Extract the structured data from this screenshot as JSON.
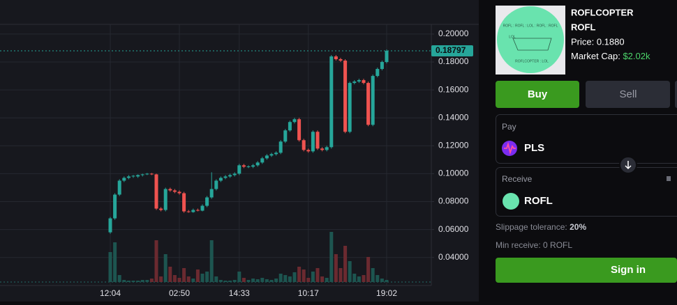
{
  "chart_data": {
    "type": "candlestick",
    "x": [
      "12:04",
      null,
      null,
      null,
      null,
      null,
      null,
      null,
      null,
      null,
      null,
      null,
      null,
      null,
      null,
      "02:50",
      null,
      null,
      null,
      null,
      null,
      null,
      null,
      null,
      null,
      null,
      null,
      null,
      "14:33",
      null,
      null,
      null,
      null,
      null,
      null,
      null,
      null,
      null,
      null,
      null,
      null,
      null,
      null,
      "10:17",
      null,
      null,
      null,
      null,
      null,
      null,
      null,
      null,
      null,
      null,
      null,
      null,
      null,
      null,
      null,
      null,
      "19:02"
    ],
    "open": [
      0.058,
      0.068,
      0.085,
      0.095,
      0.097,
      0.098,
      0.098,
      0.099,
      0.0995,
      0.1,
      0.0995,
      0.075,
      0.074,
      0.089,
      0.088,
      0.087,
      0.086,
      0.073,
      0.0725,
      0.074,
      0.0735,
      0.077,
      0.083,
      0.089,
      0.095,
      0.097,
      0.098,
      0.099,
      0.1,
      0.106,
      0.105,
      0.105,
      0.106,
      0.108,
      0.111,
      0.113,
      0.114,
      0.115,
      0.123,
      0.131,
      0.137,
      0.139,
      0.124,
      0.117,
      0.116,
      0.13,
      0.118,
      0.117,
      0.119,
      0.184,
      0.182,
      0.181,
      0.13,
      0.165,
      0.166,
      0.167,
      0.165,
      0.135,
      0.17,
      0.175,
      0.18
    ],
    "close": [
      0.068,
      0.085,
      0.095,
      0.097,
      0.098,
      0.0985,
      0.099,
      0.0995,
      0.1,
      0.0995,
      0.075,
      0.074,
      0.089,
      0.088,
      0.087,
      0.086,
      0.073,
      0.0725,
      0.074,
      0.0735,
      0.077,
      0.083,
      0.089,
      0.095,
      0.097,
      0.098,
      0.099,
      0.1,
      0.106,
      0.105,
      0.1052,
      0.106,
      0.108,
      0.111,
      0.113,
      0.114,
      0.115,
      0.123,
      0.131,
      0.137,
      0.139,
      0.124,
      0.117,
      0.116,
      0.13,
      0.118,
      0.117,
      0.119,
      0.184,
      0.182,
      0.181,
      0.13,
      0.165,
      0.166,
      0.167,
      0.165,
      0.135,
      0.17,
      0.175,
      0.18,
      0.188
    ],
    "high": [
      0.069,
      0.086,
      0.096,
      0.098,
      0.099,
      0.099,
      0.0995,
      0.1,
      0.1005,
      0.1005,
      0.1,
      0.076,
      0.09,
      0.09,
      0.089,
      0.088,
      0.087,
      0.074,
      0.075,
      0.075,
      0.078,
      0.084,
      0.101,
      0.096,
      0.098,
      0.099,
      0.1,
      0.101,
      0.107,
      0.107,
      0.106,
      0.107,
      0.109,
      0.112,
      0.114,
      0.115,
      0.116,
      0.124,
      0.132,
      0.138,
      0.14,
      0.14,
      0.125,
      0.118,
      0.131,
      0.131,
      0.119,
      0.12,
      0.185,
      0.185,
      0.183,
      0.182,
      0.166,
      0.167,
      0.168,
      0.168,
      0.166,
      0.171,
      0.176,
      0.181,
      0.189
    ],
    "low": [
      0.057,
      0.067,
      0.084,
      0.094,
      0.096,
      0.097,
      0.097,
      0.098,
      0.099,
      0.099,
      0.074,
      0.073,
      0.073,
      0.087,
      0.086,
      0.085,
      0.072,
      0.072,
      0.072,
      0.073,
      0.073,
      0.076,
      0.082,
      0.088,
      0.094,
      0.096,
      0.097,
      0.098,
      0.099,
      0.104,
      0.104,
      0.104,
      0.105,
      0.107,
      0.11,
      0.112,
      0.113,
      0.114,
      0.122,
      0.13,
      0.136,
      0.123,
      0.116,
      0.115,
      0.115,
      0.117,
      0.116,
      0.116,
      0.118,
      0.181,
      0.18,
      0.129,
      0.129,
      0.164,
      0.165,
      0.164,
      0.134,
      0.134,
      0.169,
      0.174,
      0.179
    ],
    "volume": [
      43,
      57,
      10,
      3,
      2,
      2,
      2,
      3,
      3,
      5,
      60,
      8,
      40,
      22,
      10,
      6,
      20,
      8,
      5,
      18,
      12,
      15,
      60,
      8,
      3,
      2,
      2,
      3,
      15,
      6,
      3,
      5,
      4,
      6,
      4,
      3,
      5,
      12,
      10,
      8,
      14,
      22,
      18,
      6,
      15,
      20,
      8,
      6,
      72,
      40,
      20,
      52,
      30,
      12,
      8,
      10,
      36,
      20,
      10,
      5,
      3
    ],
    "volume_lim": [
      0,
      100
    ],
    "ylim": [
      0.0224,
      0.2244
    ],
    "yticks": [
      {
        "value": 0.2,
        "label": "0.20000"
      },
      {
        "value": 0.18,
        "label": "0.18000"
      },
      {
        "value": 0.16,
        "label": "0.16000"
      },
      {
        "value": 0.14,
        "label": "0.14000"
      },
      {
        "value": 0.12,
        "label": "0.12000"
      },
      {
        "value": 0.1,
        "label": "0.10000"
      },
      {
        "value": 0.08,
        "label": "0.08000"
      },
      {
        "value": 0.06,
        "label": "0.06000"
      },
      {
        "value": 0.04,
        "label": "0.04000"
      }
    ],
    "last_price": 0.18797,
    "up_color": "#26a69a",
    "down_color": "#ef5350",
    "volume_up_color": "#1d5550",
    "volume_down_color": "#6b2a30",
    "grid": true
  },
  "token": {
    "name": "ROFLCOPTER",
    "symbol": "ROFL",
    "price": "Price: 0.1880",
    "market_cap_label": "Market Cap:",
    "market_cap": "$2.02k",
    "logo_text": [
      "ROFL : ROFL : LOL : ROFL : ROFL",
      "LOL",
      "ROFLCOPTER : LOL"
    ]
  },
  "trade": {
    "buy": "Buy",
    "sell": "Sell",
    "pay_label": "Pay",
    "pay_token": "PLS",
    "receive_label": "Receive",
    "receive_token": "ROFL",
    "slippage_label": "Slippage tolerance:",
    "slippage": "20%",
    "min_receive": "Min receive: 0 ROFL",
    "sign_in": "Sign in"
  }
}
